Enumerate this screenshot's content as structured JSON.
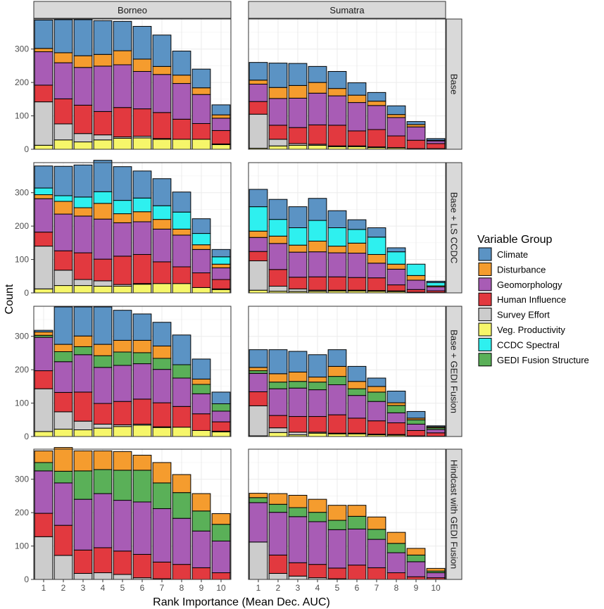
{
  "chart_data": {
    "type": "bar",
    "stacked": true,
    "xlabel": "Rank Importance (Mean Dec. AUC)",
    "ylabel": "Count",
    "ylim": [
      0,
      390
    ],
    "yticks": [
      0,
      100,
      200,
      300
    ],
    "x": [
      1,
      2,
      3,
      4,
      5,
      6,
      7,
      8,
      9,
      10
    ],
    "columns": [
      "Borneo",
      "Sumatra"
    ],
    "rows": [
      "Base",
      "Base + LS CCDC",
      "Base + GEDI Fusion",
      "Hindcast with GEDI Fusion"
    ],
    "legend": {
      "title": "Variable Group",
      "items": [
        {
          "name": "Climate",
          "color": "#5b93c4"
        },
        {
          "name": "Disturbance",
          "color": "#f59c2e"
        },
        {
          "name": "Geomorphology",
          "color": "#a85cb5"
        },
        {
          "name": "Human Influence",
          "color": "#e2393f"
        },
        {
          "name": "Survey Effort",
          "color": "#cccccc"
        },
        {
          "name": "Veg. Productivity",
          "color": "#f6f66a"
        },
        {
          "name": "CCDC Spectral",
          "color": "#2ef0ef"
        },
        {
          "name": "GEDI Fusion Structure",
          "color": "#5ab058"
        }
      ]
    },
    "stack_order": [
      "Veg. Productivity",
      "Survey Effort",
      "Human Influence",
      "Geomorphology",
      "GEDI Fusion Structure",
      "Disturbance",
      "CCDC Spectral",
      "Climate"
    ],
    "panels": [
      {
        "row": "Base",
        "column": "Borneo",
        "series": {
          "Veg. Productivity": [
            12,
            28,
            22,
            28,
            33,
            34,
            30,
            30,
            30,
            14
          ],
          "Survey Effort": [
            130,
            48,
            25,
            15,
            4,
            5,
            2,
            0,
            0,
            2
          ],
          "Human Influence": [
            50,
            75,
            85,
            70,
            88,
            82,
            78,
            60,
            47,
            40
          ],
          "Geomorphology": [
            100,
            108,
            113,
            136,
            128,
            112,
            114,
            107,
            87,
            37
          ],
          "GEDI Fusion Structure": [
            0,
            0,
            0,
            0,
            0,
            0,
            0,
            0,
            0,
            0
          ],
          "Disturbance": [
            10,
            30,
            35,
            35,
            42,
            37,
            24,
            25,
            20,
            10
          ],
          "CCDC Spectral": [
            0,
            0,
            0,
            0,
            0,
            0,
            0,
            0,
            0,
            0
          ],
          "Climate": [
            85,
            99,
            108,
            101,
            88,
            98,
            94,
            72,
            56,
            30
          ]
        }
      },
      {
        "row": "Base",
        "column": "Sumatra",
        "series": {
          "Veg. Productivity": [
            3,
            10,
            12,
            12,
            8,
            8,
            5,
            4,
            2,
            2
          ],
          "Survey Effort": [
            102,
            20,
            5,
            3,
            2,
            2,
            2,
            1,
            0,
            0
          ],
          "Human Influence": [
            38,
            42,
            48,
            58,
            62,
            45,
            52,
            35,
            25,
            15
          ],
          "Geomorphology": [
            52,
            80,
            88,
            95,
            88,
            85,
            72,
            55,
            40,
            8
          ],
          "GEDI Fusion Structure": [
            0,
            0,
            0,
            0,
            0,
            0,
            0,
            0,
            0,
            0
          ],
          "Disturbance": [
            12,
            33,
            38,
            32,
            22,
            22,
            13,
            9,
            7,
            2
          ],
          "CCDC Spectral": [
            0,
            0,
            0,
            0,
            0,
            0,
            0,
            0,
            0,
            0
          ],
          "Climate": [
            53,
            73,
            66,
            48,
            51,
            37,
            26,
            26,
            9,
            5
          ]
        }
      },
      {
        "row": "Base + LS CCDC",
        "column": "Borneo",
        "series": {
          "Veg. Productivity": [
            12,
            22,
            22,
            20,
            20,
            26,
            28,
            28,
            16,
            10
          ],
          "Survey Effort": [
            128,
            46,
            18,
            16,
            5,
            2,
            0,
            0,
            0,
            2
          ],
          "Human Influence": [
            42,
            58,
            80,
            65,
            85,
            87,
            65,
            50,
            44,
            28
          ],
          "Geomorphology": [
            100,
            110,
            110,
            120,
            100,
            98,
            98,
            95,
            70,
            35
          ],
          "GEDI Fusion Structure": [
            0,
            0,
            0,
            0,
            0,
            0,
            0,
            0,
            0,
            0
          ],
          "Disturbance": [
            12,
            38,
            25,
            47,
            27,
            30,
            29,
            18,
            14,
            11
          ],
          "CCDC Spectral": [
            20,
            17,
            32,
            35,
            40,
            41,
            41,
            51,
            34,
            22
          ],
          "Climate": [
            66,
            88,
            96,
            94,
            101,
            81,
            81,
            60,
            44,
            22
          ]
        }
      },
      {
        "row": "Base + LS CCDC",
        "column": "Sumatra",
        "series": {
          "Veg. Productivity": [
            8,
            5,
            4,
            5,
            6,
            6,
            5,
            4,
            2,
            1
          ],
          "Survey Effort": [
            88,
            15,
            8,
            3,
            2,
            2,
            2,
            2,
            0,
            0
          ],
          "Human Influence": [
            28,
            50,
            35,
            40,
            40,
            38,
            38,
            18,
            8,
            5
          ],
          "Geomorphology": [
            42,
            78,
            75,
            75,
            72,
            73,
            44,
            47,
            28,
            12
          ],
          "GEDI Fusion Structure": [
            0,
            0,
            0,
            0,
            0,
            0,
            0,
            0,
            0,
            0
          ],
          "Disturbance": [
            19,
            22,
            21,
            32,
            20,
            30,
            26,
            15,
            14,
            3
          ],
          "CCDC Spectral": [
            73,
            50,
            52,
            62,
            55,
            41,
            52,
            37,
            34,
            10
          ],
          "Climate": [
            52,
            60,
            63,
            66,
            51,
            29,
            28,
            12,
            0,
            4
          ]
        }
      },
      {
        "row": "Base + GEDI Fusion",
        "column": "Borneo",
        "series": {
          "Veg. Productivity": [
            15,
            22,
            20,
            25,
            30,
            34,
            27,
            28,
            18,
            14
          ],
          "Survey Effort": [
            128,
            52,
            26,
            12,
            5,
            3,
            2,
            0,
            0,
            2
          ],
          "Human Influence": [
            54,
            58,
            87,
            62,
            70,
            75,
            72,
            62,
            50,
            28
          ],
          "Geomorphology": [
            100,
            92,
            112,
            108,
            108,
            106,
            100,
            85,
            60,
            32
          ],
          "GEDI Fusion Structure": [
            6,
            30,
            24,
            35,
            40,
            33,
            33,
            40,
            28,
            22
          ],
          "Disturbance": [
            10,
            22,
            32,
            34,
            35,
            37,
            37,
            0,
            16,
            0
          ],
          "CCDC Spectral": [
            0,
            0,
            0,
            0,
            0,
            0,
            0,
            0,
            0,
            0
          ],
          "Climate": [
            5,
            112,
            87,
            112,
            90,
            79,
            71,
            89,
            60,
            35
          ]
        }
      },
      {
        "row": "Base + GEDI Fusion",
        "column": "Sumatra",
        "series": {
          "Veg. Productivity": [
            2,
            12,
            5,
            10,
            8,
            8,
            5,
            4,
            2,
            1
          ],
          "Survey Effort": [
            90,
            14,
            8,
            3,
            2,
            2,
            2,
            2,
            0,
            0
          ],
          "Human Influence": [
            42,
            37,
            47,
            47,
            55,
            45,
            40,
            35,
            16,
            10
          ],
          "Geomorphology": [
            55,
            80,
            85,
            80,
            90,
            68,
            58,
            30,
            19,
            10
          ],
          "GEDI Fusion Structure": [
            8,
            20,
            20,
            23,
            25,
            20,
            28,
            22,
            13,
            5
          ],
          "Disturbance": [
            10,
            25,
            28,
            15,
            30,
            22,
            17,
            8,
            5,
            3
          ],
          "CCDC Spectral": [
            0,
            0,
            0,
            0,
            0,
            0,
            0,
            0,
            0,
            0
          ],
          "Climate": [
            53,
            72,
            62,
            67,
            50,
            45,
            25,
            35,
            20,
            3
          ]
        }
      },
      {
        "row": "Hindcast with GEDI Fusion",
        "column": "Borneo",
        "series": {
          "Veg. Productivity": [
            0,
            0,
            0,
            0,
            0,
            0,
            0,
            0,
            0,
            0
          ],
          "Survey Effort": [
            128,
            72,
            18,
            20,
            15,
            5,
            2,
            0,
            0,
            0
          ],
          "Human Influence": [
            70,
            90,
            70,
            75,
            70,
            70,
            50,
            45,
            35,
            20
          ],
          "Geomorphology": [
            127,
            127,
            152,
            162,
            152,
            157,
            160,
            138,
            110,
            95
          ],
          "GEDI Fusion Structure": [
            25,
            35,
            85,
            72,
            90,
            95,
            77,
            77,
            60,
            50
          ],
          "Disturbance": [
            35,
            71,
            60,
            56,
            56,
            45,
            61,
            54,
            52,
            32
          ],
          "CCDC Spectral": [
            0,
            0,
            0,
            0,
            0,
            0,
            0,
            0,
            0,
            0
          ],
          "Climate": [
            0,
            0,
            0,
            0,
            0,
            0,
            0,
            0,
            0,
            0
          ]
        }
      },
      {
        "row": "Hindcast with GEDI Fusion",
        "column": "Sumatra",
        "series": {
          "Veg. Productivity": [
            0,
            0,
            0,
            0,
            0,
            0,
            0,
            0,
            0,
            0
          ],
          "Survey Effort": [
            112,
            18,
            10,
            5,
            2,
            0,
            0,
            0,
            0,
            0
          ],
          "Human Influence": [
            0,
            55,
            40,
            40,
            32,
            43,
            35,
            20,
            8,
            5
          ],
          "Geomorphology": [
            118,
            128,
            138,
            128,
            115,
            108,
            85,
            60,
            45,
            15
          ],
          "GEDI Fusion Structure": [
            15,
            24,
            27,
            28,
            28,
            38,
            30,
            28,
            20,
            5
          ],
          "Disturbance": [
            13,
            32,
            37,
            39,
            45,
            33,
            37,
            33,
            20,
            8
          ],
          "CCDC Spectral": [
            0,
            0,
            0,
            0,
            0,
            0,
            0,
            0,
            0,
            0
          ],
          "Climate": [
            0,
            0,
            0,
            0,
            0,
            0,
            0,
            0,
            0,
            0
          ]
        }
      }
    ]
  }
}
